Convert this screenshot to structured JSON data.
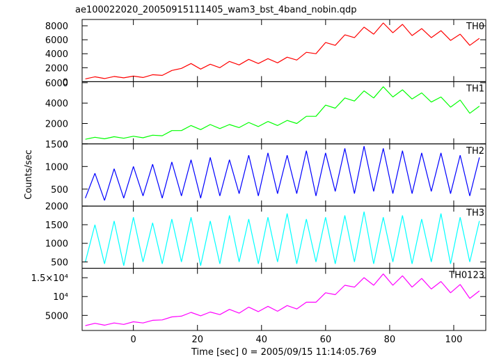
{
  "chart_data": {
    "type": "line",
    "title": "ae100022020_20050915111405_wam3_bst_4band_nobin.qdp",
    "xlabel": "Time [sec] 0 = 2005/09/15 11:14:05.769",
    "ylabel": "Counts/sec",
    "xlim": [
      -16,
      110
    ],
    "xticks": [
      0,
      20,
      40,
      60,
      80,
      100
    ],
    "x": [
      -15,
      -12,
      -9,
      -6,
      -3,
      0,
      3,
      6,
      9,
      12,
      15,
      18,
      21,
      24,
      27,
      30,
      33,
      36,
      39,
      42,
      45,
      48,
      51,
      54,
      57,
      60,
      63,
      66,
      69,
      72,
      75,
      78,
      81,
      84,
      87,
      90,
      93,
      96,
      99,
      102,
      105,
      108
    ],
    "series": [
      {
        "name": "TH0",
        "color": "#ff0000",
        "ylim": [
          0,
          8900
        ],
        "yticks": [
          0,
          2000,
          4000,
          6000,
          8000
        ],
        "values": [
          400,
          700,
          450,
          750,
          550,
          800,
          600,
          1000,
          900,
          1600,
          1900,
          2600,
          1800,
          2500,
          2000,
          2900,
          2400,
          3200,
          2600,
          3300,
          2700,
          3500,
          3100,
          4200,
          4000,
          5600,
          5200,
          6700,
          6300,
          7800,
          6800,
          8400,
          7000,
          8200,
          6600,
          7600,
          6300,
          7300,
          5900,
          6800,
          5200,
          6200
        ]
      },
      {
        "name": "TH1",
        "color": "#00ff00",
        "ylim": [
          0,
          6100
        ],
        "yticks": [
          0,
          2000,
          4000,
          6000
        ],
        "values": [
          450,
          650,
          500,
          700,
          550,
          750,
          600,
          850,
          800,
          1300,
          1300,
          1800,
          1400,
          1900,
          1500,
          1900,
          1600,
          2100,
          1700,
          2200,
          1800,
          2300,
          2000,
          2700,
          2700,
          3800,
          3500,
          4500,
          4200,
          5200,
          4500,
          5600,
          4600,
          5300,
          4400,
          5000,
          4100,
          4600,
          3600,
          4300,
          3000,
          3700
        ]
      },
      {
        "name": "TH2",
        "color": "#0000ff",
        "ylim": [
          125,
          1500
        ],
        "yticks": [
          500,
          1000,
          1500
        ],
        "values": [
          300,
          850,
          250,
          950,
          300,
          1000,
          350,
          1050,
          300,
          1100,
          350,
          1150,
          300,
          1200,
          350,
          1150,
          400,
          1250,
          350,
          1300,
          400,
          1250,
          400,
          1350,
          350,
          1300,
          450,
          1400,
          400,
          1450,
          450,
          1400,
          400,
          1350,
          400,
          1300,
          450,
          1300,
          400,
          1250,
          350,
          1200
        ]
      },
      {
        "name": "TH3",
        "color": "#00ffff",
        "ylim": [
          330,
          2000
        ],
        "yticks": [
          500,
          1000,
          1500,
          2000
        ],
        "values": [
          500,
          1500,
          450,
          1600,
          400,
          1700,
          500,
          1550,
          450,
          1650,
          500,
          1700,
          400,
          1600,
          450,
          1750,
          500,
          1650,
          450,
          1700,
          500,
          1800,
          450,
          1650,
          500,
          1700,
          450,
          1750,
          500,
          1850,
          450,
          1700,
          500,
          1750,
          450,
          1650,
          500,
          1800,
          450,
          1700,
          500,
          1600
        ]
      },
      {
        "name": "TH0123",
        "color": "#ff00ff",
        "ylim": [
          1000,
          17500
        ],
        "yticks": [
          5000,
          {
            "value": 10000,
            "label": "10⁴"
          },
          {
            "value": 15000,
            "label": "1.5×10⁴"
          }
        ],
        "values": [
          2300,
          2900,
          2400,
          3000,
          2600,
          3300,
          3000,
          3700,
          3800,
          4600,
          4800,
          5800,
          4900,
          5900,
          5200,
          6600,
          5600,
          7200,
          6000,
          7400,
          6100,
          7600,
          6700,
          8500,
          8500,
          11000,
          10500,
          13000,
          12500,
          15000,
          13000,
          16000,
          13000,
          15500,
          12500,
          14800,
          12000,
          14000,
          11000,
          13200,
          9500,
          11500
        ]
      }
    ]
  }
}
